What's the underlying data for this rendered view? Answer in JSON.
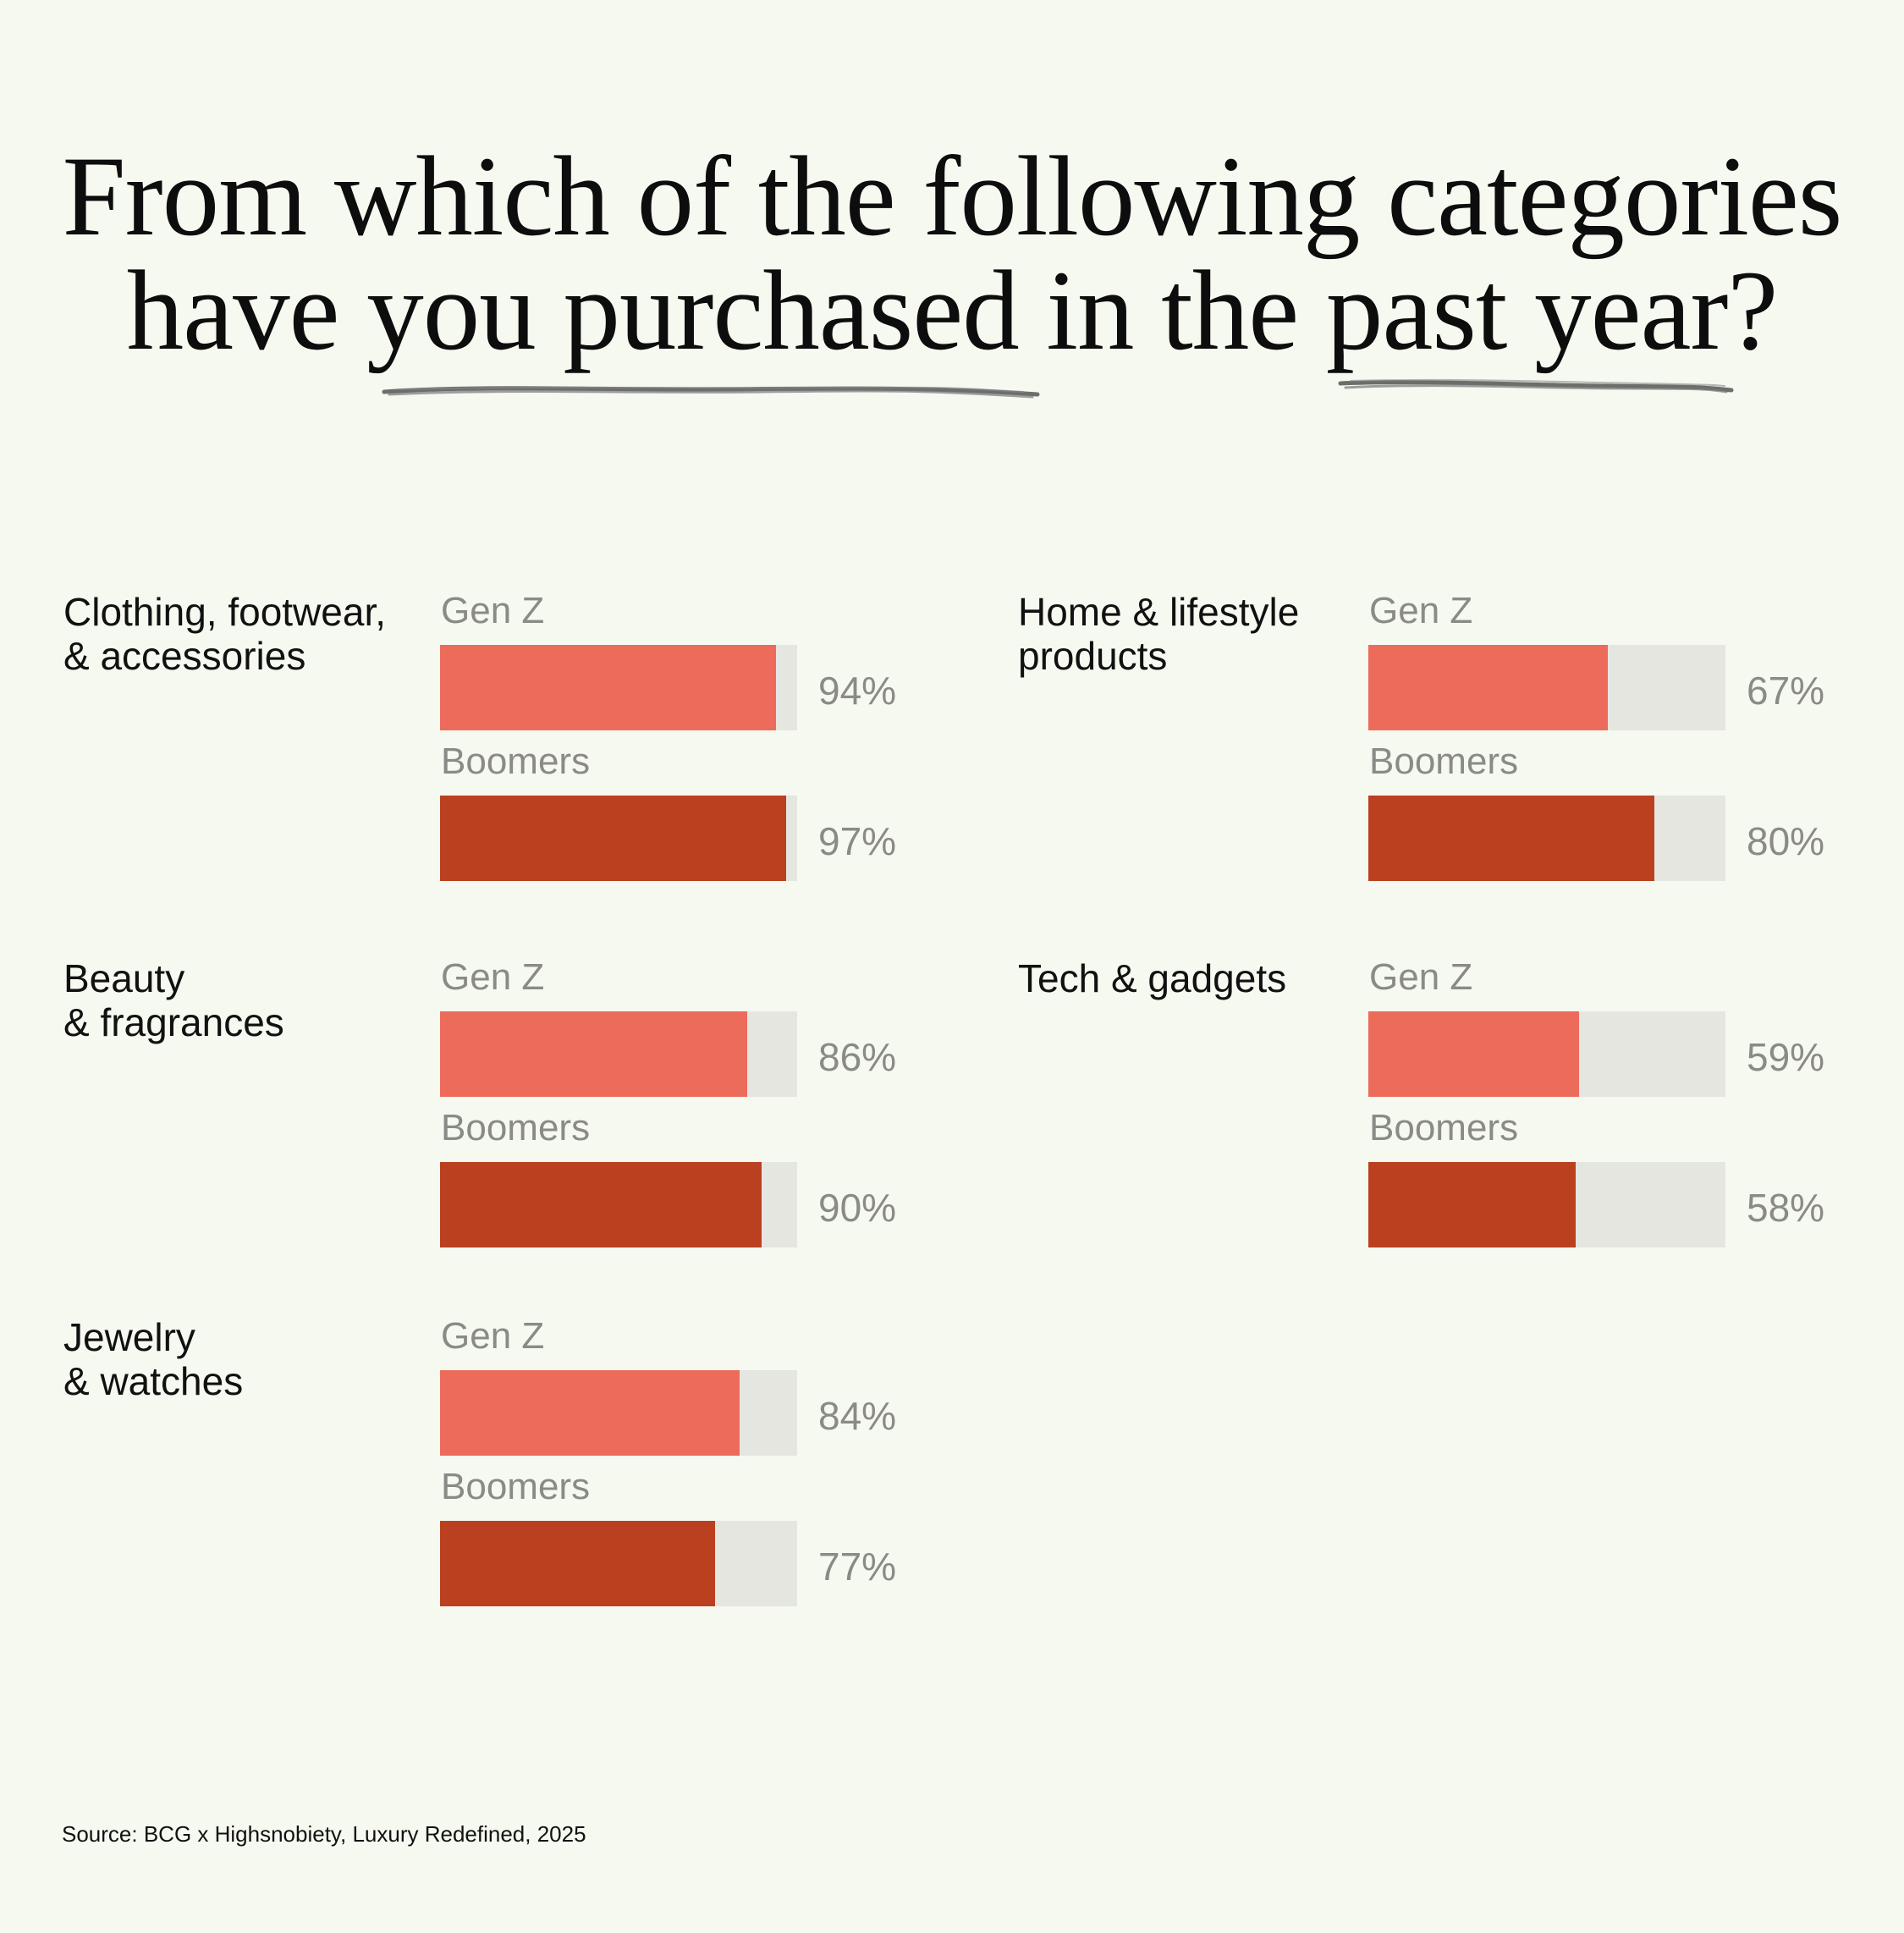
{
  "colors": {
    "background": "#f6f9f0",
    "gen_z": "#ec6b5b",
    "boomers": "#bb4020",
    "track": "#e6e6e1",
    "muted_text": "#8a8a86"
  },
  "title_lines": [
    "From which of the following categories",
    "have you purchased in the past year?"
  ],
  "source": "Source: BCG x Highsnobiety, Luxury Redefined, 2025",
  "chart_data": {
    "type": "bar",
    "orientation": "horizontal",
    "title": "From which of the following categories have you purchased in the past year?",
    "unit": "%",
    "xlim": [
      0,
      100
    ],
    "categories": [
      {
        "label_lines": [
          "Clothing, footwear,",
          "& accessories"
        ],
        "series": [
          {
            "name": "Gen Z",
            "value": 94,
            "value_label": "94%"
          },
          {
            "name": "Boomers",
            "value": 97,
            "value_label": "97%"
          }
        ]
      },
      {
        "label_lines": [
          "Beauty",
          "& fragrances"
        ],
        "series": [
          {
            "name": "Gen Z",
            "value": 86,
            "value_label": "86%"
          },
          {
            "name": "Boomers",
            "value": 90,
            "value_label": "90%"
          }
        ]
      },
      {
        "label_lines": [
          "Jewelry",
          "& watches"
        ],
        "series": [
          {
            "name": "Gen Z",
            "value": 84,
            "value_label": "84%"
          },
          {
            "name": "Boomers",
            "value": 77,
            "value_label": "77%"
          }
        ]
      },
      {
        "label_lines": [
          "Home & lifestyle",
          "products"
        ],
        "series": [
          {
            "name": "Gen Z",
            "value": 67,
            "value_label": "67%"
          },
          {
            "name": "Boomers",
            "value": 80,
            "value_label": "80%"
          }
        ]
      },
      {
        "label_lines": [
          "Tech & gadgets"
        ],
        "series": [
          {
            "name": "Gen Z",
            "value": 59,
            "value_label": "59%"
          },
          {
            "name": "Boomers",
            "value": 58,
            "value_label": "58%"
          }
        ]
      }
    ]
  }
}
